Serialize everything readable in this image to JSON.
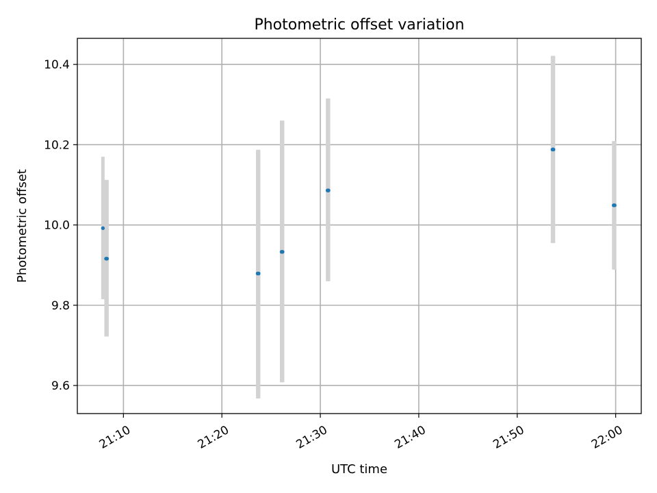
{
  "chart_data": {
    "type": "scatter",
    "title": "Photometric offset variation",
    "xlabel": "UTC time",
    "ylabel": "Photometric offset",
    "x_unit": "UTC time (HH:MM)",
    "xlim": [
      "21:05:19",
      "22:02:36"
    ],
    "ylim": [
      9.53,
      10.465
    ],
    "xticks": [
      "21:10",
      "21:20",
      "21:30",
      "21:40",
      "21:50",
      "22:00"
    ],
    "yticks": [
      9.6,
      9.8,
      10.0,
      10.2,
      10.4
    ],
    "ytick_labels": [
      "9.6",
      "9.8",
      "10.0",
      "10.2",
      "10.4"
    ],
    "grid": true,
    "colors": {
      "points": "#1f77b4",
      "errorbars": "#d3d3d3"
    },
    "series": [
      {
        "points": [
          {
            "time": "21:07:55",
            "y": 9.992,
            "ylow": 9.815,
            "yhigh": 10.17
          },
          {
            "time": "21:08:14",
            "y": 9.916,
            "ylow": 9.722,
            "yhigh": 10.112
          },
          {
            "time": "21:08:17",
            "y": 9.916,
            "ylow": 9.722,
            "yhigh": 10.112
          },
          {
            "time": "21:08:20",
            "y": 9.916,
            "ylow": 9.722,
            "yhigh": 10.112
          },
          {
            "time": "21:23:38",
            "y": 9.879,
            "ylow": 9.568,
            "yhigh": 10.187
          },
          {
            "time": "21:23:41",
            "y": 9.879,
            "ylow": 9.568,
            "yhigh": 10.187
          },
          {
            "time": "21:23:44",
            "y": 9.879,
            "ylow": 9.568,
            "yhigh": 10.187
          },
          {
            "time": "21:26:04",
            "y": 9.933,
            "ylow": 9.608,
            "yhigh": 10.26
          },
          {
            "time": "21:26:07",
            "y": 9.933,
            "ylow": 9.608,
            "yhigh": 10.26
          },
          {
            "time": "21:26:10",
            "y": 9.933,
            "ylow": 9.608,
            "yhigh": 10.26
          },
          {
            "time": "21:30:44",
            "y": 10.086,
            "ylow": 9.86,
            "yhigh": 10.315
          },
          {
            "time": "21:30:47",
            "y": 10.086,
            "ylow": 9.86,
            "yhigh": 10.315
          },
          {
            "time": "21:30:50",
            "y": 10.086,
            "ylow": 9.86,
            "yhigh": 10.315
          },
          {
            "time": "21:53:35",
            "y": 10.188,
            "ylow": 9.955,
            "yhigh": 10.421
          },
          {
            "time": "21:53:38",
            "y": 10.188,
            "ylow": 9.955,
            "yhigh": 10.421
          },
          {
            "time": "21:53:41",
            "y": 10.188,
            "ylow": 9.955,
            "yhigh": 10.421
          },
          {
            "time": "21:59:48",
            "y": 10.049,
            "ylow": 9.889,
            "yhigh": 10.209
          },
          {
            "time": "21:59:51",
            "y": 10.049,
            "ylow": 9.889,
            "yhigh": 10.209
          },
          {
            "time": "21:59:54",
            "y": 10.049,
            "ylow": 9.889,
            "yhigh": 10.209
          }
        ]
      }
    ]
  }
}
